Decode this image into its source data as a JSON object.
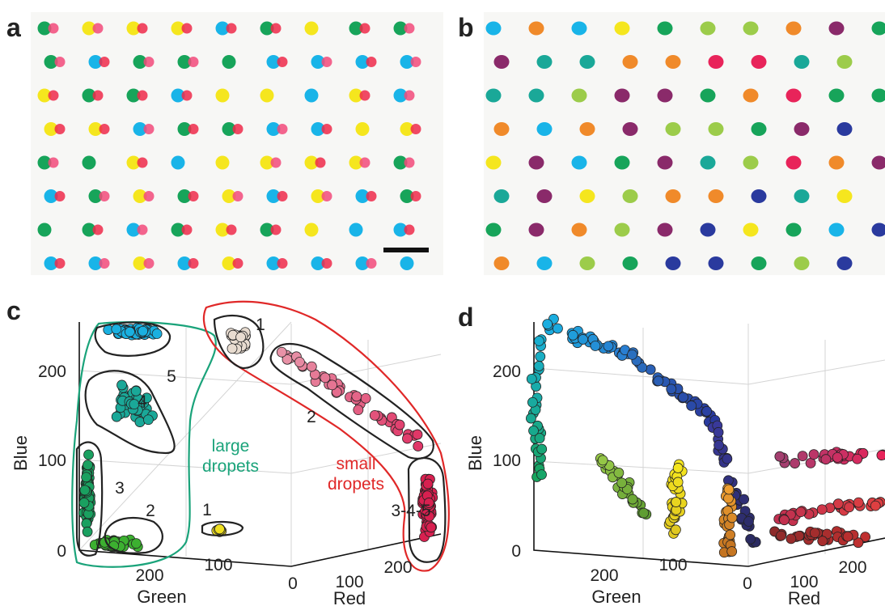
{
  "panel_a": {
    "label": "a"
  },
  "panel_b": {
    "label": "b"
  },
  "panel_c": {
    "label": "c",
    "z_label": "Blue",
    "green_label": "Green",
    "red_label": "Red",
    "z_ticks": [
      "0",
      "100",
      "200"
    ],
    "green_ticks": [
      "200",
      "100",
      "0"
    ],
    "red_ticks": [
      "100",
      "200"
    ],
    "large_label": [
      "large",
      "dropets"
    ],
    "small_label": [
      "small",
      "dropets"
    ],
    "clusters": [
      "1",
      "5",
      "4",
      "3",
      "2",
      "1",
      "2",
      "3-4-5"
    ]
  },
  "panel_d": {
    "label": "d",
    "z_label": "Blue",
    "green_label": "Green",
    "red_label": "Red",
    "z_ticks": [
      "0",
      "100",
      "200"
    ],
    "green_ticks": [
      "200",
      "100",
      "0"
    ],
    "red_ticks": [
      "100",
      "200"
    ]
  }
}
